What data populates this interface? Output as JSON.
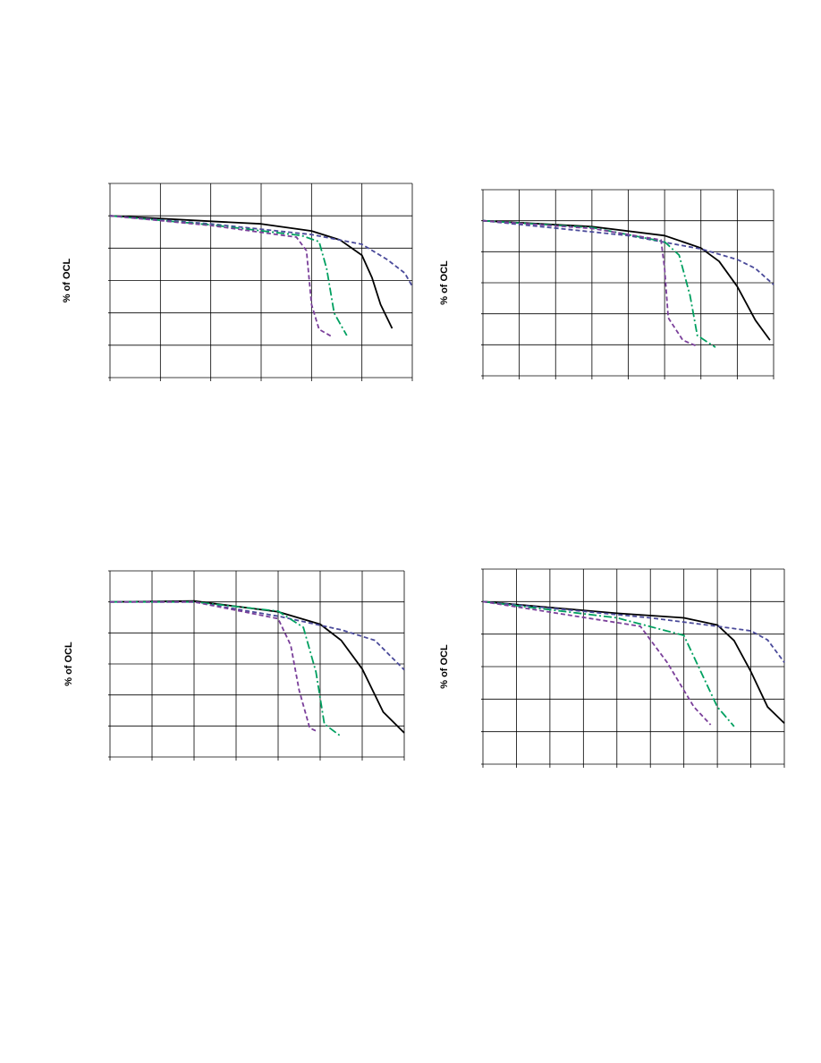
{
  "chart_data": [
    {
      "type": "line",
      "y_label": "% of OCL",
      "xlim": [
        0,
        6
      ],
      "ylim": [
        0,
        6
      ],
      "xticks": [
        0,
        1,
        2,
        3,
        4,
        5,
        6
      ],
      "yticks": [
        0,
        1,
        2,
        3,
        4,
        5,
        6
      ],
      "grid": true,
      "series": [
        {
          "color": "#000000",
          "dash": "solid",
          "x": [
            0,
            2,
            3,
            4,
            4.57,
            5,
            5.2,
            5.37,
            5.6
          ],
          "values": [
            5.0,
            4.83,
            4.75,
            4.53,
            4.25,
            3.78,
            3.09,
            2.26,
            1.52
          ]
        },
        {
          "color": "#4a4a9a",
          "dash": "dashed",
          "x": [
            0,
            2,
            4,
            5,
            5.5,
            5.85,
            6
          ],
          "values": [
            5.0,
            4.75,
            4.42,
            4.12,
            3.65,
            3.23,
            2.82
          ]
        },
        {
          "color": "#00a060",
          "dash": "dashdot",
          "x": [
            0,
            2,
            3.8,
            4.15,
            4.3,
            4.45,
            4.7
          ],
          "values": [
            5.0,
            4.72,
            4.39,
            4.2,
            3.37,
            1.99,
            1.3
          ]
        },
        {
          "color": "#7a3f9a",
          "dash": "dashed",
          "x": [
            0,
            2,
            3.7,
            3.9,
            4.0,
            4.15,
            4.4
          ],
          "values": [
            5.0,
            4.7,
            4.34,
            3.92,
            2.26,
            1.49,
            1.27
          ]
        }
      ]
    },
    {
      "type": "line",
      "y_label": "% of OCL",
      "xlim": [
        0,
        8
      ],
      "ylim": [
        0,
        6
      ],
      "xticks": [
        0,
        1,
        2,
        3,
        4,
        5,
        6,
        7,
        8
      ],
      "yticks": [
        0,
        1,
        2,
        3,
        4,
        5,
        6
      ],
      "grid": true,
      "series": [
        {
          "color": "#000000",
          "dash": "solid",
          "x": [
            0,
            3,
            5,
            6,
            6.5,
            7,
            7.5,
            7.9
          ],
          "values": [
            5.0,
            4.81,
            4.52,
            4.12,
            3.69,
            2.88,
            1.79,
            1.15
          ]
        },
        {
          "color": "#4a4a9a",
          "dash": "dashed",
          "x": [
            0,
            4,
            6,
            7,
            7.5,
            8
          ],
          "values": [
            5.0,
            4.52,
            4.09,
            3.75,
            3.46,
            2.94
          ]
        },
        {
          "color": "#00a060",
          "dash": "dashdot",
          "x": [
            0,
            3,
            5,
            5.4,
            5.7,
            5.9,
            6.4
          ],
          "values": [
            5.0,
            4.78,
            4.32,
            3.89,
            2.59,
            1.3,
            0.92
          ]
        },
        {
          "color": "#7a3f9a",
          "dash": "dashed",
          "x": [
            0,
            3,
            4.9,
            5.0,
            5.1,
            5.5,
            5.9
          ],
          "values": [
            5.0,
            4.75,
            4.38,
            3.46,
            1.87,
            1.15,
            0.95
          ]
        }
      ]
    },
    {
      "type": "line",
      "y_label": "% of OCL",
      "xlim": [
        0,
        7
      ],
      "ylim": [
        0,
        6
      ],
      "xticks": [
        0,
        1,
        2,
        3,
        4,
        5,
        6,
        7
      ],
      "yticks": [
        0,
        1,
        2,
        3,
        4,
        5,
        6
      ],
      "grid": true,
      "series": [
        {
          "color": "#000000",
          "dash": "solid",
          "x": [
            0,
            2,
            4,
            5,
            5.5,
            6,
            6.5,
            7
          ],
          "values": [
            5.0,
            5.03,
            4.68,
            4.28,
            3.76,
            2.84,
            1.45,
            0.78
          ]
        },
        {
          "color": "#4a4a9a",
          "dash": "dashed",
          "x": [
            0,
            2,
            4,
            5.5,
            6.3,
            7
          ],
          "values": [
            5.0,
            5.0,
            4.54,
            4.1,
            3.76,
            2.81
          ]
        },
        {
          "color": "#00a060",
          "dash": "dashdot",
          "x": [
            0,
            2,
            4,
            4.6,
            4.9,
            5.1,
            5.5
          ],
          "values": [
            5.0,
            5.0,
            4.7,
            4.18,
            2.74,
            1.06,
            0.66
          ]
        },
        {
          "color": "#7a3f9a",
          "dash": "dashed",
          "x": [
            0,
            2,
            4,
            4.3,
            4.5,
            4.75,
            4.9
          ],
          "values": [
            5.0,
            5.0,
            4.46,
            3.6,
            2.15,
            0.94,
            0.84
          ]
        }
      ]
    },
    {
      "type": "line",
      "y_label": "% of OCL",
      "xlim": [
        0,
        9
      ],
      "ylim": [
        0,
        6
      ],
      "xticks": [
        0,
        1,
        2,
        3,
        4,
        5,
        6,
        7,
        8,
        9
      ],
      "yticks": [
        0,
        1,
        2,
        3,
        4,
        5,
        6
      ],
      "grid": true,
      "series": [
        {
          "color": "#000000",
          "dash": "solid",
          "x": [
            0,
            4,
            6,
            7,
            7.5,
            8,
            8.5,
            9
          ],
          "values": [
            5.0,
            4.64,
            4.5,
            4.28,
            3.8,
            2.85,
            1.76,
            1.26
          ]
        },
        {
          "color": "#4a4a9a",
          "dash": "dashed",
          "x": [
            0,
            5,
            7,
            8,
            8.5,
            9
          ],
          "values": [
            5.0,
            4.5,
            4.24,
            4.1,
            3.82,
            3.13
          ]
        },
        {
          "color": "#00a060",
          "dash": "dashdot",
          "x": [
            0,
            4,
            6.0,
            6.5,
            7.0,
            7.5
          ],
          "values": [
            5.0,
            4.5,
            3.96,
            2.86,
            1.76,
            1.16
          ]
        },
        {
          "color": "#7a3f9a",
          "dash": "dashed",
          "x": [
            0,
            4.7,
            5.5,
            6.3,
            6.8
          ],
          "values": [
            5.0,
            4.24,
            3.13,
            1.76,
            1.21
          ]
        }
      ]
    }
  ]
}
